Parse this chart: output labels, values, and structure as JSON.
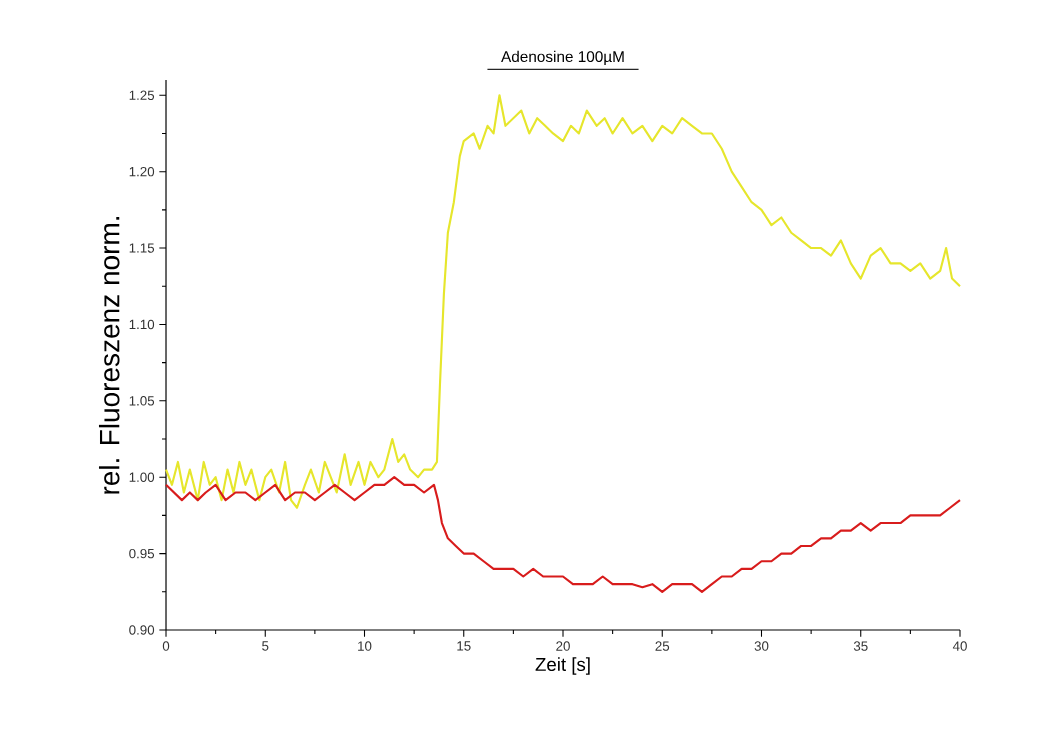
{
  "chart_data": {
    "type": "line",
    "xlabel": "Zeit [s]",
    "ylabel": "rel.  Fluoreszenz norm.",
    "xlim": [
      0,
      40
    ],
    "xticks": [
      0,
      5,
      10,
      15,
      20,
      25,
      30,
      35,
      40
    ],
    "ylim": [
      0.9,
      1.26
    ],
    "yticks": [
      {
        "value": 0.9,
        "label": "0.90"
      },
      {
        "value": 0.95,
        "label": "0.95"
      },
      {
        "value": 1.0,
        "label": "1.00"
      },
      {
        "value": 1.05,
        "label": "1.05"
      },
      {
        "value": 1.1,
        "label": "1.10"
      },
      {
        "value": 1.15,
        "label": "1.15"
      },
      {
        "value": 1.2,
        "label": "1.20"
      },
      {
        "value": 1.25,
        "label": "1.25"
      }
    ],
    "annotations": [
      "Adenosine 100µM"
    ],
    "series": [
      {
        "color": "#e6e62c",
        "x": [
          0,
          0.3,
          0.6,
          0.9,
          1.2,
          1.6,
          1.9,
          2.2,
          2.5,
          2.8,
          3.1,
          3.4,
          3.7,
          4.0,
          4.3,
          4.7,
          5.0,
          5.3,
          5.7,
          6.0,
          6.3,
          6.6,
          7.0,
          7.3,
          7.7,
          8.0,
          8.3,
          8.6,
          9.0,
          9.3,
          9.7,
          10.0,
          10.3,
          10.7,
          11.0,
          11.4,
          11.7,
          12.0,
          12.3,
          12.7,
          13.0,
          13.4,
          13.65,
          13.8,
          14.0,
          14.2,
          14.5,
          14.8,
          15.0,
          15.5,
          15.8,
          16.2,
          16.5,
          16.8,
          17.1,
          17.5,
          17.9,
          18.3,
          18.7,
          19.1,
          19.5,
          20.0,
          20.4,
          20.8,
          21.2,
          21.7,
          22.1,
          22.5,
          23.0,
          23.5,
          24.0,
          24.5,
          25.0,
          25.5,
          26.0,
          26.5,
          27.0,
          27.5,
          28.0,
          28.5,
          29.0,
          29.5,
          30.0,
          30.5,
          31.0,
          31.5,
          32.0,
          32.5,
          33.0,
          33.5,
          34.0,
          34.5,
          35.0,
          35.5,
          36.0,
          36.5,
          37.0,
          37.5,
          38.0,
          38.5,
          39.0,
          39.3,
          39.6,
          40.0
        ],
        "values": [
          1.005,
          0.995,
          1.01,
          0.99,
          1.005,
          0.985,
          1.01,
          0.995,
          1.0,
          0.985,
          1.005,
          0.99,
          1.01,
          0.995,
          1.005,
          0.985,
          1.0,
          1.005,
          0.99,
          1.01,
          0.985,
          0.98,
          0.995,
          1.005,
          0.99,
          1.01,
          1.0,
          0.99,
          1.015,
          0.995,
          1.01,
          0.995,
          1.01,
          1.0,
          1.005,
          1.025,
          1.01,
          1.015,
          1.005,
          1.0,
          1.005,
          1.005,
          1.01,
          1.06,
          1.12,
          1.16,
          1.18,
          1.21,
          1.22,
          1.225,
          1.215,
          1.23,
          1.225,
          1.25,
          1.23,
          1.235,
          1.24,
          1.225,
          1.235,
          1.23,
          1.225,
          1.22,
          1.23,
          1.225,
          1.24,
          1.23,
          1.235,
          1.225,
          1.235,
          1.225,
          1.23,
          1.22,
          1.23,
          1.225,
          1.235,
          1.23,
          1.225,
          1.225,
          1.215,
          1.2,
          1.19,
          1.18,
          1.175,
          1.165,
          1.17,
          1.16,
          1.155,
          1.15,
          1.15,
          1.145,
          1.155,
          1.14,
          1.13,
          1.145,
          1.15,
          1.14,
          1.14,
          1.135,
          1.14,
          1.13,
          1.135,
          1.15,
          1.13,
          1.125
        ]
      },
      {
        "color": "#d81c1c",
        "x": [
          0,
          0.4,
          0.8,
          1.2,
          1.6,
          2.0,
          2.5,
          3.0,
          3.5,
          4.0,
          4.5,
          5.0,
          5.5,
          6.0,
          6.5,
          7.0,
          7.5,
          8.0,
          8.5,
          9.0,
          9.5,
          10.0,
          10.5,
          11.0,
          11.5,
          12.0,
          12.5,
          13.0,
          13.5,
          13.7,
          13.9,
          14.2,
          14.6,
          15.0,
          15.5,
          16.0,
          16.5,
          17.0,
          17.5,
          18.0,
          18.5,
          19.0,
          19.5,
          20.0,
          20.5,
          21.0,
          21.5,
          22.0,
          22.5,
          23.0,
          23.5,
          24.0,
          24.5,
          25.0,
          25.5,
          26.0,
          26.5,
          27.0,
          27.5,
          28.0,
          28.5,
          29.0,
          29.5,
          30.0,
          30.5,
          31.0,
          31.5,
          32.0,
          32.5,
          33.0,
          33.5,
          34.0,
          34.5,
          35.0,
          35.5,
          36.0,
          36.5,
          37.0,
          37.5,
          38.0,
          38.5,
          39.0,
          39.5,
          40.0
        ],
        "values": [
          0.995,
          0.99,
          0.985,
          0.99,
          0.985,
          0.99,
          0.995,
          0.985,
          0.99,
          0.99,
          0.985,
          0.99,
          0.995,
          0.985,
          0.99,
          0.99,
          0.985,
          0.99,
          0.995,
          0.99,
          0.985,
          0.99,
          0.995,
          0.995,
          1.0,
          0.995,
          0.995,
          0.99,
          0.995,
          0.985,
          0.97,
          0.96,
          0.955,
          0.95,
          0.95,
          0.945,
          0.94,
          0.94,
          0.94,
          0.935,
          0.94,
          0.935,
          0.935,
          0.935,
          0.93,
          0.93,
          0.93,
          0.935,
          0.93,
          0.93,
          0.93,
          0.928,
          0.93,
          0.925,
          0.93,
          0.93,
          0.93,
          0.925,
          0.93,
          0.935,
          0.935,
          0.94,
          0.94,
          0.945,
          0.945,
          0.95,
          0.95,
          0.955,
          0.955,
          0.96,
          0.96,
          0.965,
          0.965,
          0.97,
          0.965,
          0.97,
          0.97,
          0.97,
          0.975,
          0.975,
          0.975,
          0.975,
          0.98,
          0.985
        ]
      }
    ]
  }
}
